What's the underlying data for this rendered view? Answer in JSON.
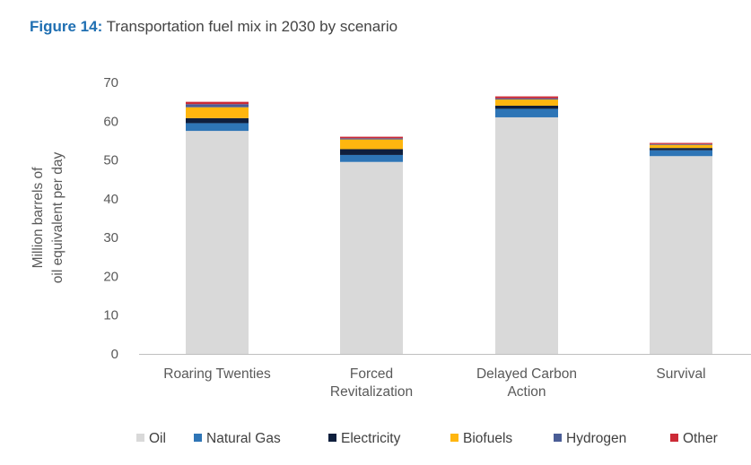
{
  "header": {
    "figure_label": "Figure 14:",
    "caption": "Transportation fuel mix in 2030 by scenario"
  },
  "chart_data": {
    "type": "bar",
    "stacked": true,
    "title": "Figure 14: Transportation fuel mix in 2030 by scenario",
    "ylabel_lines": [
      "Million barrels of",
      "oil equivalent per day"
    ],
    "xlabel": "",
    "ylim": [
      0,
      70
    ],
    "yticks": [
      0,
      10,
      20,
      30,
      40,
      50,
      60,
      70
    ],
    "grid": false,
    "legend_position": "bottom",
    "categories": [
      [
        "Roaring Twenties"
      ],
      [
        "Forced",
        "Revitalization"
      ],
      [
        "Delayed Carbon",
        "Action"
      ],
      [
        "Survival"
      ]
    ],
    "series": [
      {
        "name": "Oil",
        "color": "#d9d9d9",
        "values": [
          57.5,
          49.5,
          61.0,
          51.0
        ]
      },
      {
        "name": "Natural Gas",
        "color": "#2e75b6",
        "values": [
          2.0,
          1.8,
          2.2,
          1.5
        ]
      },
      {
        "name": "Electricity",
        "color": "#0f1f3d",
        "values": [
          1.3,
          1.5,
          0.8,
          0.6
        ]
      },
      {
        "name": "Biofuels",
        "color": "#ffb60f",
        "values": [
          2.8,
          2.5,
          1.6,
          0.8
        ]
      },
      {
        "name": "Hydrogen",
        "color": "#4a5d96",
        "values": [
          0.8,
          0.3,
          0.3,
          0.2
        ]
      },
      {
        "name": "Other",
        "color": "#cc2a36",
        "values": [
          0.6,
          0.4,
          0.5,
          0.3
        ]
      }
    ]
  }
}
